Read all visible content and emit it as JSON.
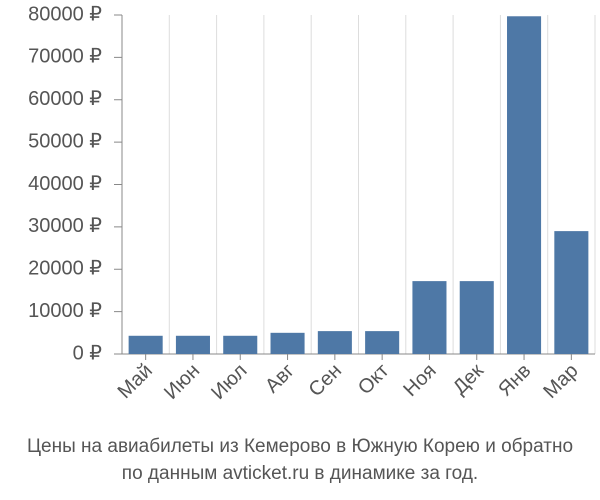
{
  "chart_data": {
    "type": "bar",
    "title": "Цены на авиабилеты из Кемерово в Южную Корею и обратно",
    "subtitle": "по данным avticket.ru в динамике за год.",
    "categories": [
      "Май",
      "Июн",
      "Июл",
      "Авг",
      "Сен",
      "Окт",
      "Ноя",
      "Дек",
      "Янв",
      "Мар"
    ],
    "values": [
      4300,
      4300,
      4300,
      5000,
      5400,
      5400,
      17200,
      17200,
      79700,
      29000
    ],
    "color": "#4e78a6",
    "ylim": [
      0,
      80000
    ],
    "yticks": [
      {
        "value": 0,
        "label": "0 ₽"
      },
      {
        "value": 10000,
        "label": "10000 ₽"
      },
      {
        "value": 20000,
        "label": "20000 ₽"
      },
      {
        "value": 30000,
        "label": "30000 ₽"
      },
      {
        "value": 40000,
        "label": "40000 ₽"
      },
      {
        "value": 50000,
        "label": "50000 ₽"
      },
      {
        "value": 60000,
        "label": "60000 ₽"
      },
      {
        "value": 70000,
        "label": "70000 ₽"
      },
      {
        "value": 80000,
        "label": "80000 ₽"
      }
    ],
    "grid": true
  }
}
